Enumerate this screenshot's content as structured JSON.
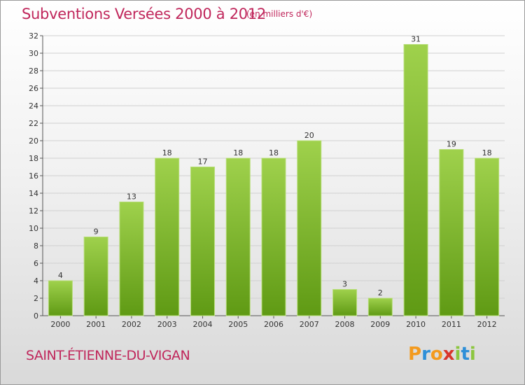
{
  "header": {
    "title": "Subventions Versées 2000 à 2012",
    "unit": "(en milliers d'€)"
  },
  "footer": {
    "commune": "SAINT-ÉTIENNE-DU-VIGAN",
    "logo_letters": [
      {
        "char": "P",
        "color": "#f39a1e"
      },
      {
        "char": "r",
        "color": "#2e8fd8"
      },
      {
        "char": "o",
        "color": "#f39a1e"
      },
      {
        "char": "x",
        "color": "#d8352b"
      },
      {
        "char": "i",
        "color": "#8cc63f"
      },
      {
        "char": "t",
        "color": "#2e8fd8"
      },
      {
        "char": "i",
        "color": "#8cc63f"
      }
    ]
  },
  "colors": {
    "bar_light": "#9fd14c",
    "bar_dark": "#5f9a14",
    "title": "#c0265b",
    "grid": "#d0d0d0"
  },
  "chart_data": {
    "type": "bar",
    "title": "Subventions Versées 2000 à 2012",
    "ylabel": "",
    "xlabel": "",
    "categories": [
      "2000",
      "2001",
      "2002",
      "2003",
      "2004",
      "2005",
      "2006",
      "2007",
      "2008",
      "2009",
      "2010",
      "2011",
      "2012"
    ],
    "values": [
      4,
      9,
      13,
      18,
      17,
      18,
      18,
      20,
      3,
      2,
      31,
      19,
      18
    ],
    "ylim": [
      0,
      32
    ],
    "yticks": [
      0,
      2,
      4,
      6,
      8,
      10,
      12,
      14,
      16,
      18,
      20,
      22,
      24,
      26,
      28,
      30,
      32
    ],
    "grid": true
  }
}
